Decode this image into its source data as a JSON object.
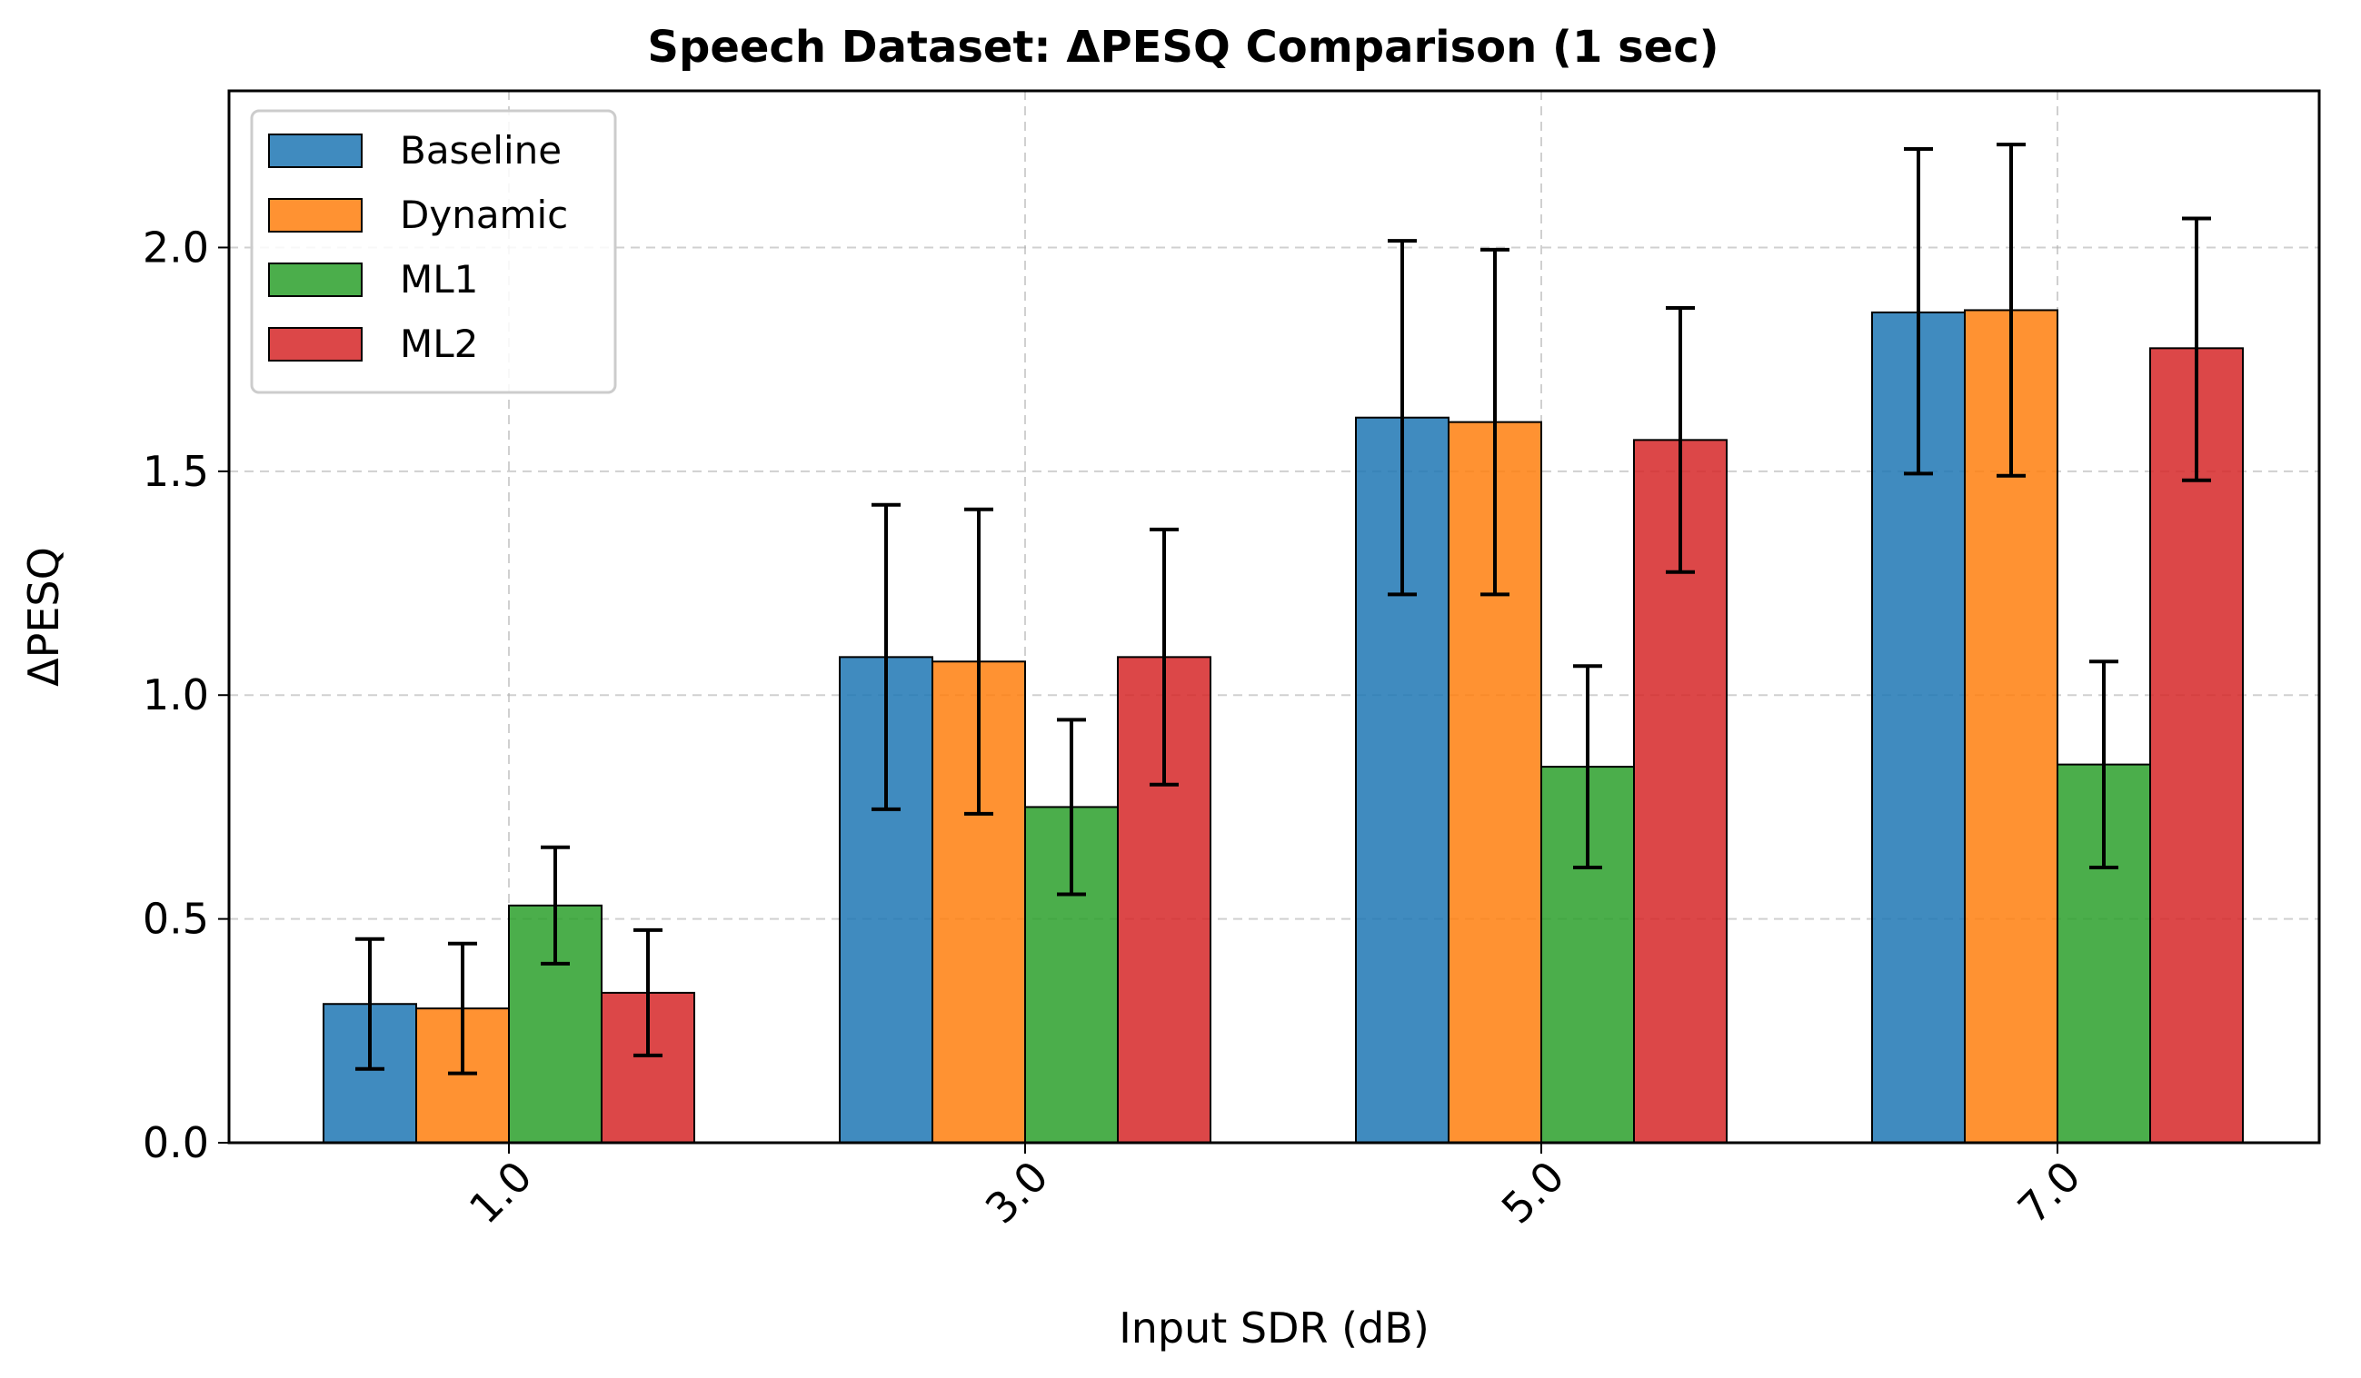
{
  "chart_data": {
    "type": "bar",
    "title": "Speech Dataset: ΔPESQ Comparison (1 sec)",
    "xlabel": "Input SDR (dB)",
    "ylabel": "ΔPESQ",
    "categories": [
      "1.0",
      "3.0",
      "5.0",
      "7.0"
    ],
    "ylim": [
      0,
      2.35
    ],
    "yticks": [
      0.0,
      0.5,
      1.0,
      1.5,
      2.0
    ],
    "ytick_labels": [
      "0.0",
      "0.5",
      "1.0",
      "1.5",
      "2.0"
    ],
    "grid": true,
    "legend_position": "top-left",
    "series": [
      {
        "name": "Baseline",
        "color": "#1f77b4",
        "values": [
          0.31,
          1.085,
          1.62,
          1.855
        ],
        "err_low": [
          0.165,
          0.745,
          1.225,
          1.495
        ],
        "err_high": [
          0.455,
          1.425,
          2.015,
          2.22
        ]
      },
      {
        "name": "Dynamic",
        "color": "#ff7f0e",
        "values": [
          0.3,
          1.075,
          1.61,
          1.86
        ],
        "err_low": [
          0.155,
          0.735,
          1.225,
          1.49
        ],
        "err_high": [
          0.445,
          1.415,
          1.995,
          2.23
        ]
      },
      {
        "name": "ML1",
        "color": "#2ca02c",
        "values": [
          0.53,
          0.75,
          0.84,
          0.845
        ],
        "err_low": [
          0.4,
          0.555,
          0.615,
          0.615
        ],
        "err_high": [
          0.66,
          0.945,
          1.065,
          1.075
        ]
      },
      {
        "name": "ML2",
        "color": "#d62728",
        "values": [
          0.335,
          1.085,
          1.57,
          1.775
        ],
        "err_low": [
          0.195,
          0.8,
          1.275,
          1.48
        ],
        "err_high": [
          0.475,
          1.37,
          1.865,
          2.065
        ]
      }
    ]
  }
}
